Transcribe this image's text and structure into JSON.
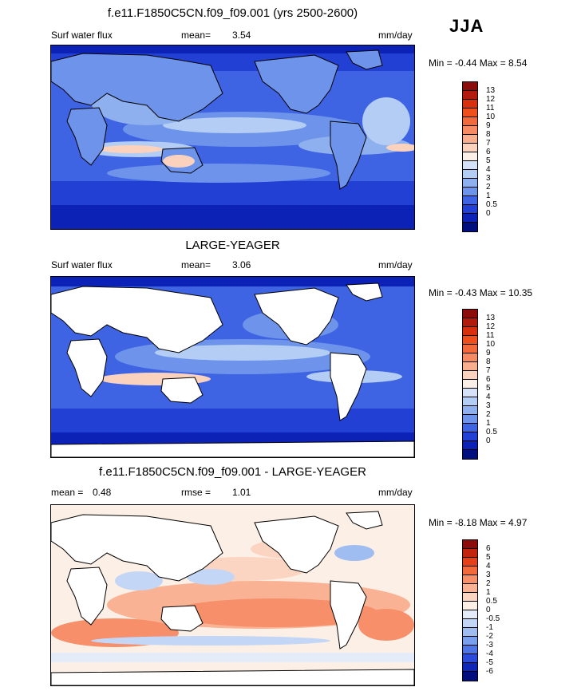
{
  "season": "JJA",
  "panels": [
    {
      "title": "f.e11.F1850C5CN.f09_f09.001 (yrs 2500-2600)",
      "left_label": "Surf water flux",
      "mean_label": "mean=",
      "mean_value": "3.54",
      "units": "mm/day",
      "minmax": "Min = -0.44 Max = 8.54",
      "map_type": "model",
      "colorbar": {
        "levels": [
          "13",
          "12",
          "11",
          "10",
          "9",
          "8",
          "7",
          "6",
          "5",
          "4",
          "3",
          "2",
          "1",
          "0.5",
          "0"
        ],
        "colors": [
          "#8c0b0b",
          "#b11a0c",
          "#d8300f",
          "#ef4f1d",
          "#f26a3c",
          "#f68a62",
          "#f9ae8e",
          "#fbd2bd",
          "#fbf0e7",
          "#d5e2f7",
          "#b4cdf4",
          "#8fb0ee",
          "#6d94ea",
          "#3f64e3",
          "#2340d4",
          "#0c21b5",
          "#000f7d"
        ]
      }
    },
    {
      "title": "LARGE-YEAGER",
      "left_label": "Surf water flux",
      "mean_label": "mean=",
      "mean_value": "3.06",
      "units": "mm/day",
      "minmax": "Min = -0.43 Max = 10.35",
      "map_type": "obs",
      "colorbar": {
        "levels": [
          "13",
          "12",
          "11",
          "10",
          "9",
          "8",
          "7",
          "6",
          "5",
          "4",
          "3",
          "2",
          "1",
          "0.5",
          "0"
        ],
        "colors": [
          "#8c0b0b",
          "#b11a0c",
          "#d8300f",
          "#ef4f1d",
          "#f26a3c",
          "#f68a62",
          "#f9ae8e",
          "#fbd2bd",
          "#fbf0e7",
          "#d5e2f7",
          "#b4cdf4",
          "#8fb0ee",
          "#6d94ea",
          "#3f64e3",
          "#2340d4",
          "#0c21b5",
          "#000f7d"
        ]
      }
    },
    {
      "title": "f.e11.F1850C5CN.f09_f09.001 - LARGE-YEAGER",
      "left_label": "mean =",
      "left_value": "0.48",
      "mean_label": "rmse =",
      "mean_value": "1.01",
      "units": "mm/day",
      "minmax": "Min = -8.18 Max = 4.97",
      "map_type": "diff",
      "colorbar": {
        "levels": [
          "6",
          "5",
          "4",
          "3",
          "2",
          "1",
          "0.5",
          "0",
          "-0.5",
          "-1",
          "-2",
          "-3",
          "-4",
          "-5",
          "-6"
        ],
        "colors": [
          "#8c0b0b",
          "#c2240e",
          "#e5401a",
          "#f26a3c",
          "#f68f6a",
          "#f9b394",
          "#fbd5c2",
          "#fcefe6",
          "#e4ecfa",
          "#c4d6f6",
          "#9fbdf1",
          "#7a9fec",
          "#4f75e5",
          "#2a4cd8",
          "#0f27b8",
          "#000f7d"
        ]
      }
    }
  ]
}
